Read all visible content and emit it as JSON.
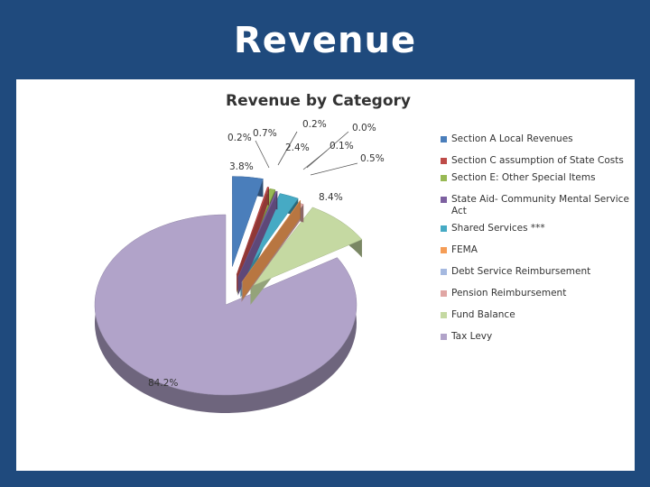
{
  "slide": {
    "title": "Revenue"
  },
  "chart_data": {
    "type": "pie",
    "title": "Revenue by Category",
    "series": [
      {
        "name": "Section A Local Revenues",
        "label": "3.8%",
        "value": 3.8,
        "color": "#4a7ebb"
      },
      {
        "name": "Section C assumption of State Costs",
        "label": "0.2%",
        "value": 0.2,
        "color": "#be4b48"
      },
      {
        "name": "Section E: Other Special Items",
        "label": "0.7%",
        "value": 0.7,
        "color": "#98b954"
      },
      {
        "name": "State Aid- Community Mental Service Act",
        "label": "0.2%",
        "value": 0.2,
        "color": "#7d60a0"
      },
      {
        "name": "Shared Services ***",
        "label": "2.4%",
        "value": 2.4,
        "color": "#46aac4"
      },
      {
        "name": "FEMA",
        "label": "0.0%",
        "value": 0.0,
        "color": "#f59d56"
      },
      {
        "name": "Debt Service Reimbursement",
        "label": "0.1%",
        "value": 0.1,
        "color": "#a5b9e0"
      },
      {
        "name": "Pension Reimbursement",
        "label": "0.5%",
        "value": 0.5,
        "color": "#e0a6a4"
      },
      {
        "name": "Fund Balance",
        "label": "8.4%",
        "value": 8.4,
        "color": "#c5d9a2"
      },
      {
        "name": "Tax Levy",
        "label": "84.2%",
        "value": 84.2,
        "color": "#b1a3c9"
      }
    ],
    "legend_position": "right",
    "exploded": true,
    "three_d": true
  }
}
